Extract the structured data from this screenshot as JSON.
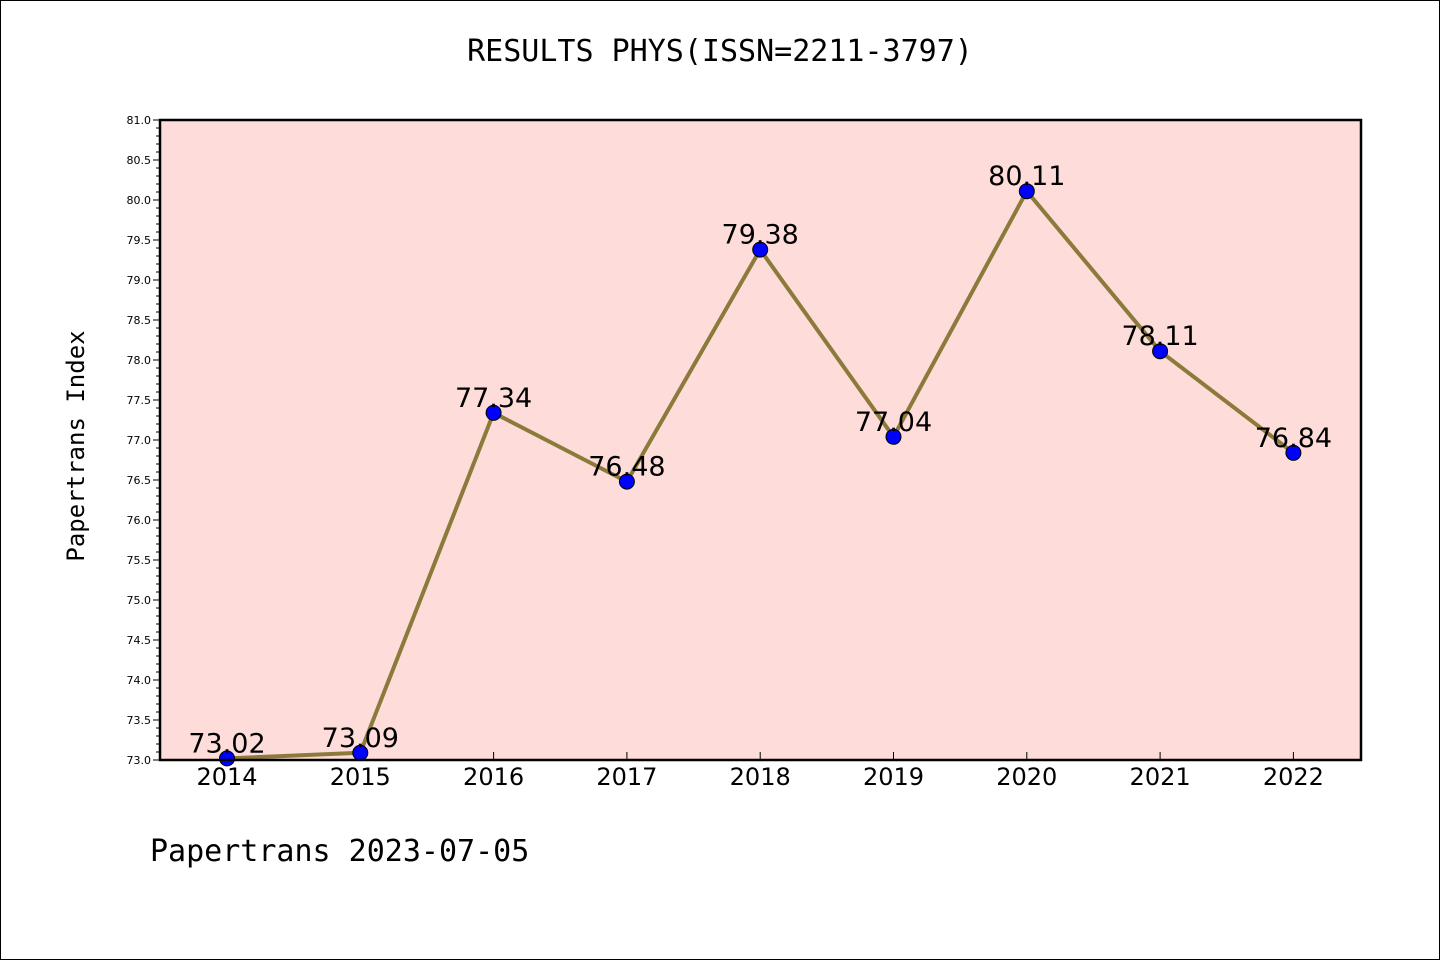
{
  "chart_data": {
    "type": "line",
    "title": "RESULTS PHYS(ISSN=2211-3797)",
    "xlabel": "",
    "ylabel": "Papertrans Index",
    "categories": [
      "2014",
      "2015",
      "2016",
      "2017",
      "2018",
      "2019",
      "2020",
      "2021",
      "2022"
    ],
    "values": [
      73.02,
      73.09,
      77.34,
      76.48,
      79.38,
      77.04,
      80.11,
      78.11,
      76.84
    ],
    "data_labels": [
      "73.02",
      "73.09",
      "77.34",
      "76.48",
      "79.38",
      "77.04",
      "80.11",
      "78.11",
      "76.84"
    ],
    "ylim": [
      73.0,
      81.0
    ],
    "yticks": [
      "73.0",
      "73.5",
      "74.0",
      "74.5",
      "75.0",
      "75.5",
      "76.0",
      "76.5",
      "77.0",
      "77.5",
      "78.0",
      "78.5",
      "79.0",
      "79.5",
      "80.0",
      "80.5",
      "81.0"
    ],
    "grid": false,
    "legend": "none",
    "line_color": "#8b7a3a",
    "marker_color": "#0000ff",
    "plot_background": "#fddcda"
  },
  "footer": {
    "text": "Papertrans 2023-07-05"
  }
}
